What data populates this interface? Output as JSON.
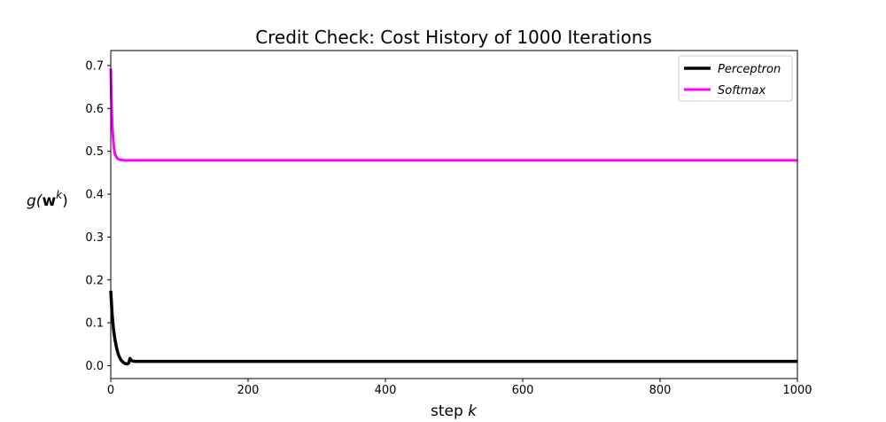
{
  "chart_data": {
    "type": "line",
    "title": "Credit Check: Cost History of 1000 Iterations",
    "xlabel": {
      "prefix": "step ",
      "var": "k"
    },
    "ylabel": {
      "g": "g(",
      "w": "w",
      "sup": "k",
      "close": ")"
    },
    "xlim": [
      0,
      1000
    ],
    "ylim": [
      -0.03,
      0.735
    ],
    "x_ticks": [
      0,
      200,
      400,
      600,
      800,
      1000
    ],
    "y_ticks": [
      0.0,
      0.1,
      0.2,
      0.3,
      0.4,
      0.5,
      0.6,
      0.7
    ],
    "legend_position": "top-right",
    "series": [
      {
        "name": "Perceptron",
        "color": "#000000",
        "x": [
          0,
          2,
          4,
          6,
          8,
          10,
          12,
          15,
          18,
          21,
          24,
          26,
          28,
          30,
          32,
          35,
          40,
          50,
          100,
          200,
          400,
          600,
          800,
          1000
        ],
        "y": [
          0.175,
          0.12,
          0.085,
          0.062,
          0.045,
          0.032,
          0.022,
          0.013,
          0.008,
          0.005,
          0.004,
          0.006,
          0.017,
          0.012,
          0.011,
          0.01,
          0.01,
          0.01,
          0.01,
          0.01,
          0.01,
          0.01,
          0.01,
          0.01
        ]
      },
      {
        "name": "Softmax",
        "color": "#ff00ff",
        "x": [
          0,
          1,
          2,
          3,
          4,
          5,
          6,
          8,
          10,
          12,
          15,
          20,
          25,
          30,
          50,
          100,
          200,
          400,
          600,
          800,
          1000
        ],
        "y": [
          0.693,
          0.62,
          0.57,
          0.54,
          0.52,
          0.505,
          0.495,
          0.487,
          0.483,
          0.481,
          0.48,
          0.479,
          0.479,
          0.479,
          0.479,
          0.479,
          0.479,
          0.479,
          0.479,
          0.479,
          0.479
        ]
      }
    ]
  }
}
